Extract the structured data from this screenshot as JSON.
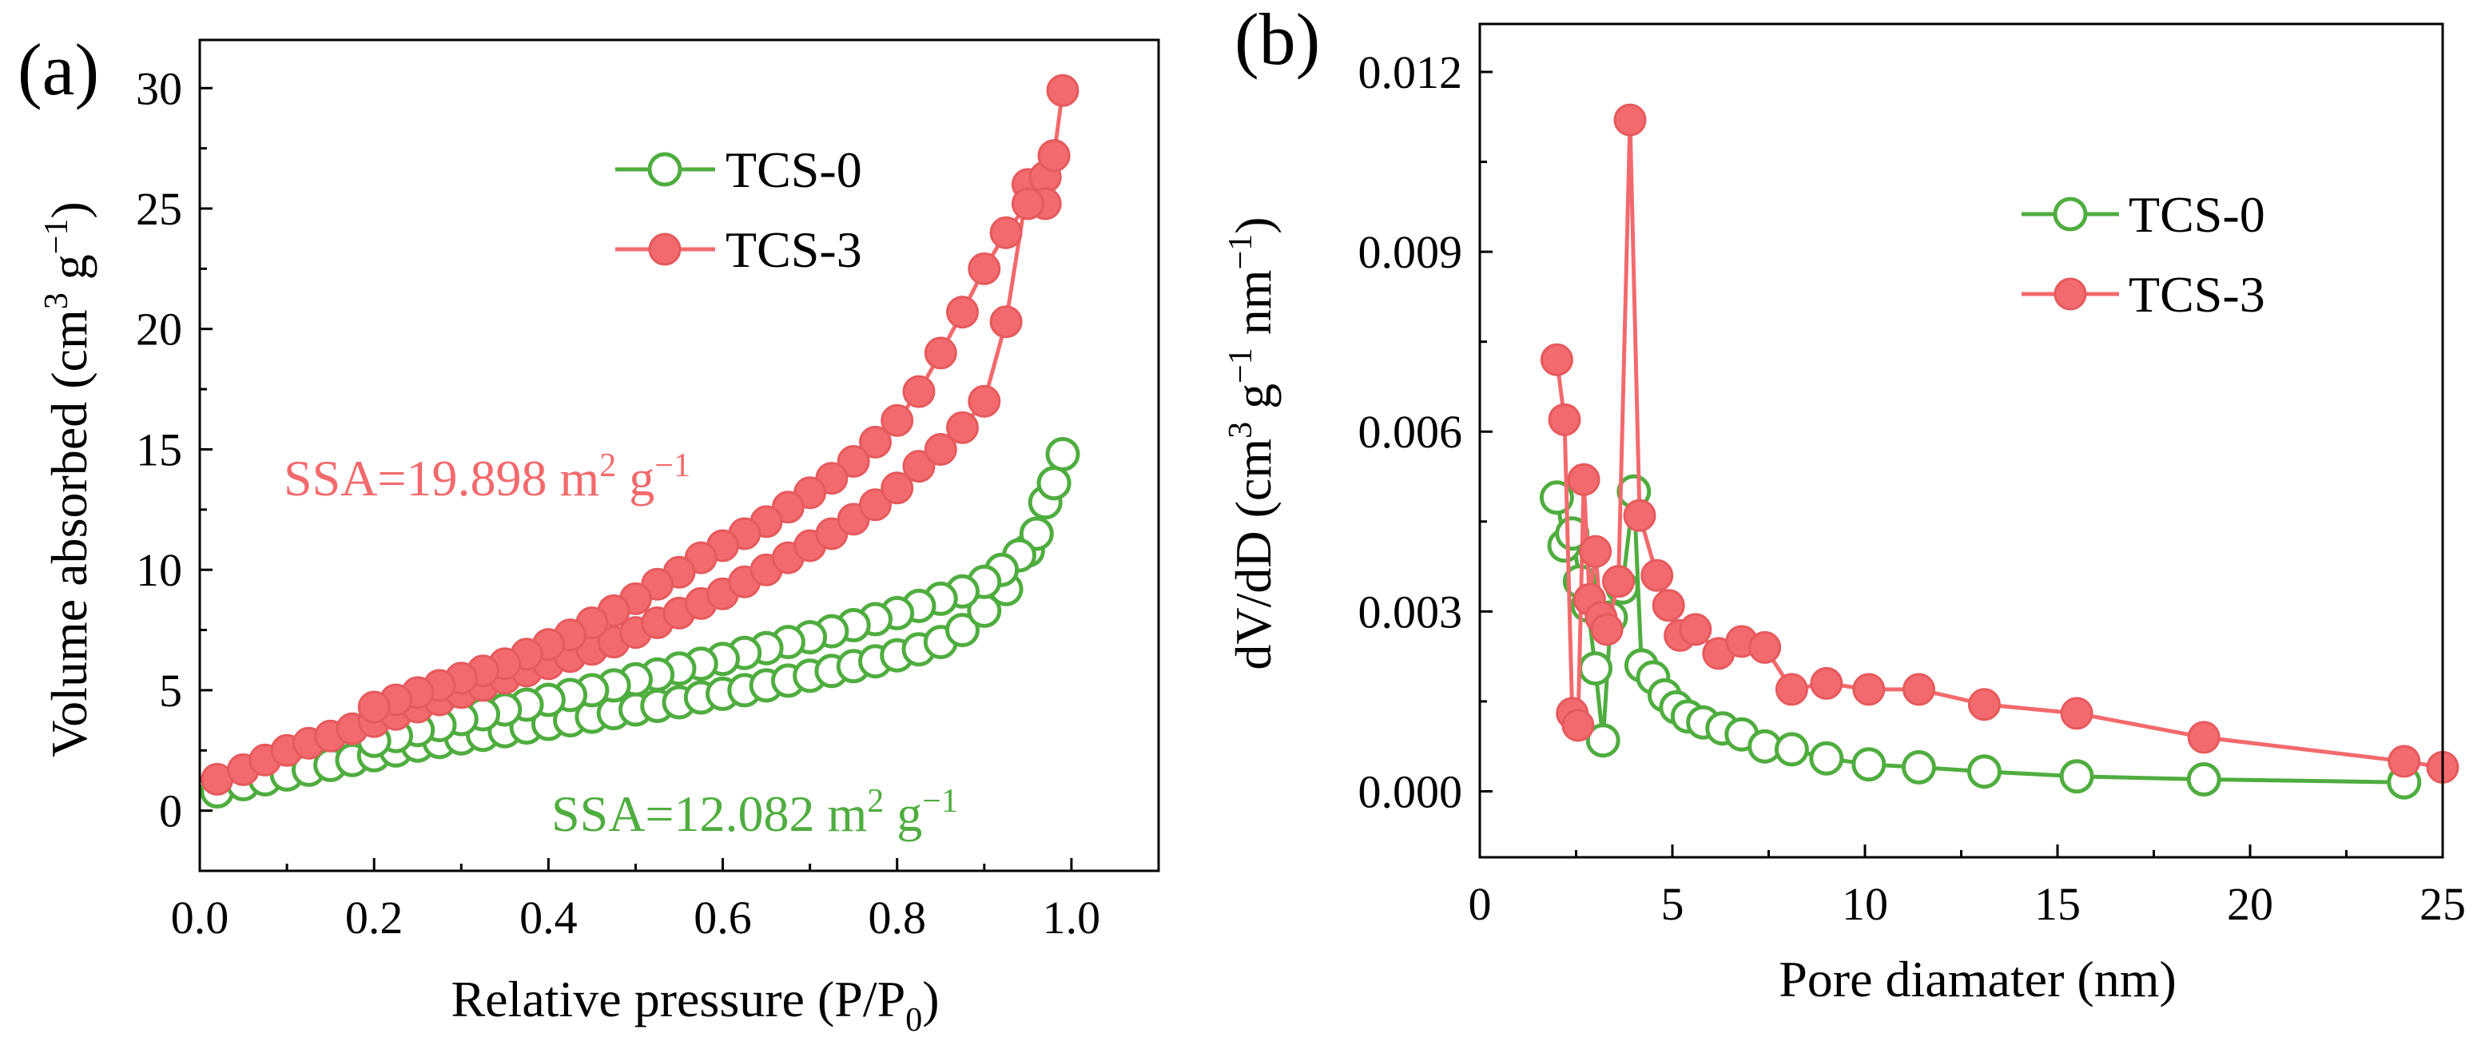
{
  "colors": {
    "tcs0": "#4fad3f",
    "tcs3": "#f26a6d",
    "axis": "#000000"
  },
  "chart_data": [
    {
      "panel_label": "(a)",
      "type": "scatter",
      "title": "",
      "xlabel": "Relative pressure (P/P",
      "xlabel_sub": "0",
      "xlabel_end": ")",
      "ylabel": "Volume absorbed (cm",
      "ylabel_sup1": "3",
      "ylabel_mid": " g",
      "ylabel_sup2": "−1",
      "ylabel_end": ")",
      "xlim": [
        0,
        1.1
      ],
      "ylim": [
        -2.5,
        32
      ],
      "xticks": [
        0.0,
        0.2,
        0.4,
        0.6,
        0.8,
        1.0
      ],
      "xtick_labels": [
        "0.0",
        "0.2",
        "0.4",
        "0.6",
        "0.8",
        "1.0"
      ],
      "yticks": [
        0,
        5,
        10,
        15,
        20,
        25,
        30
      ],
      "ytick_labels": [
        "0",
        "5",
        "10",
        "15",
        "20",
        "25",
        "30"
      ],
      "legend": {
        "position": "top-right",
        "entries": [
          "TCS-0",
          "TCS-3"
        ]
      },
      "annotations": [
        {
          "series": "TCS-3",
          "base": "SSA=19.898 m",
          "sup1": "2",
          "mid": " g",
          "sup2": "−1"
        },
        {
          "series": "TCS-0",
          "base": "SSA=12.082 m",
          "sup1": "2",
          "mid": " g",
          "sup2": "−1"
        }
      ],
      "series": [
        {
          "name": "TCS-0",
          "marker": "open-circle",
          "color_key": "tcs0",
          "x": [
            0.02,
            0.05,
            0.075,
            0.1,
            0.125,
            0.15,
            0.175,
            0.2,
            0.225,
            0.25,
            0.275,
            0.3,
            0.325,
            0.35,
            0.375,
            0.4,
            0.425,
            0.45,
            0.475,
            0.5,
            0.525,
            0.55,
            0.575,
            0.6,
            0.625,
            0.65,
            0.675,
            0.7,
            0.725,
            0.75,
            0.775,
            0.8,
            0.825,
            0.85,
            0.875,
            0.9,
            0.925,
            0.95,
            0.97,
            0.98,
            0.99,
            0.98,
            0.96,
            0.94,
            0.92,
            0.9,
            0.875,
            0.85,
            0.825,
            0.8,
            0.775,
            0.75,
            0.725,
            0.7,
            0.675,
            0.65,
            0.625,
            0.6,
            0.575,
            0.55,
            0.525,
            0.5,
            0.475,
            0.45,
            0.425,
            0.4,
            0.375,
            0.35,
            0.325,
            0.3,
            0.275,
            0.25,
            0.225,
            0.2
          ],
          "y": [
            0.8,
            1.1,
            1.3,
            1.5,
            1.7,
            1.9,
            2.1,
            2.3,
            2.5,
            2.7,
            2.85,
            3.0,
            3.15,
            3.3,
            3.45,
            3.6,
            3.75,
            3.9,
            4.05,
            4.2,
            4.35,
            4.5,
            4.7,
            4.85,
            5.0,
            5.2,
            5.4,
            5.6,
            5.8,
            6.0,
            6.2,
            6.45,
            6.7,
            7.0,
            7.5,
            8.3,
            9.2,
            10.8,
            12.8,
            13.6,
            14.8,
            13.6,
            11.5,
            10.6,
            10.0,
            9.5,
            9.1,
            8.8,
            8.5,
            8.2,
            7.95,
            7.7,
            7.45,
            7.2,
            7.0,
            6.75,
            6.55,
            6.3,
            6.1,
            5.9,
            5.65,
            5.45,
            5.2,
            5.0,
            4.8,
            4.6,
            4.4,
            4.2,
            4.0,
            3.8,
            3.55,
            3.35,
            3.1,
            2.9
          ]
        },
        {
          "name": "TCS-3",
          "marker": "filled-circle",
          "color_key": "tcs3",
          "x": [
            0.02,
            0.05,
            0.075,
            0.1,
            0.125,
            0.15,
            0.175,
            0.2,
            0.225,
            0.25,
            0.275,
            0.3,
            0.325,
            0.35,
            0.375,
            0.4,
            0.425,
            0.45,
            0.475,
            0.5,
            0.525,
            0.55,
            0.575,
            0.6,
            0.625,
            0.65,
            0.675,
            0.7,
            0.725,
            0.75,
            0.775,
            0.8,
            0.825,
            0.85,
            0.875,
            0.9,
            0.925,
            0.95,
            0.97,
            0.98,
            0.99,
            0.98,
            0.97,
            0.95,
            0.925,
            0.9,
            0.875,
            0.85,
            0.825,
            0.8,
            0.775,
            0.75,
            0.725,
            0.7,
            0.675,
            0.65,
            0.625,
            0.6,
            0.575,
            0.55,
            0.525,
            0.5,
            0.475,
            0.45,
            0.425,
            0.4,
            0.375,
            0.35,
            0.325,
            0.3,
            0.275,
            0.25,
            0.225,
            0.2
          ],
          "y": [
            1.3,
            1.7,
            2.1,
            2.5,
            2.8,
            3.1,
            3.4,
            3.7,
            4.0,
            4.3,
            4.6,
            4.9,
            5.2,
            5.5,
            5.8,
            6.1,
            6.4,
            6.7,
            7.0,
            7.4,
            7.8,
            8.2,
            8.6,
            9.0,
            9.5,
            10.0,
            10.5,
            11.0,
            11.5,
            12.1,
            12.7,
            13.4,
            14.3,
            15.0,
            15.9,
            17.0,
            20.3,
            26.0,
            26.3,
            27.2,
            29.9,
            27.2,
            25.2,
            25.2,
            24.0,
            22.5,
            20.7,
            19.0,
            17.4,
            16.2,
            15.3,
            14.5,
            13.8,
            13.2,
            12.6,
            12.0,
            11.5,
            11.0,
            10.5,
            9.9,
            9.4,
            8.8,
            8.3,
            7.8,
            7.3,
            6.9,
            6.5,
            6.1,
            5.8,
            5.5,
            5.2,
            4.9,
            4.6,
            4.3
          ]
        }
      ]
    },
    {
      "panel_label": "(b)",
      "type": "line",
      "title": "",
      "xlabel": "Pore diamater (nm)",
      "ylabel": "dV/dD (cm",
      "ylabel_sup1": "3",
      "ylabel_mid1": " g",
      "ylabel_sup2": "−1",
      "ylabel_mid2": " nm",
      "ylabel_sup3": "−1",
      "ylabel_end": ")",
      "xlim": [
        0,
        25
      ],
      "ylim": [
        -0.0011,
        0.0128
      ],
      "xticks": [
        0,
        5,
        10,
        15,
        20,
        25
      ],
      "xtick_labels": [
        "0",
        "5",
        "10",
        "15",
        "20",
        "25"
      ],
      "yticks": [
        0,
        0.003,
        0.006,
        0.009,
        0.012
      ],
      "ytick_labels": [
        "0.000",
        "0.003",
        "0.006",
        "0.009",
        "0.012"
      ],
      "legend": {
        "position": "top-right",
        "entries": [
          "TCS-0",
          "TCS-3"
        ]
      },
      "series": [
        {
          "name": "TCS-0",
          "marker": "open-circle",
          "color_key": "tcs0",
          "x": [
            2.0,
            2.2,
            2.4,
            2.6,
            2.8,
            3.0,
            3.2,
            3.4,
            3.7,
            4.0,
            4.2,
            4.5,
            4.8,
            5.1,
            5.4,
            5.8,
            6.3,
            6.8,
            7.4,
            8.1,
            9.0,
            10.1,
            11.4,
            13.1,
            15.5,
            18.8,
            24.0
          ],
          "y": [
            0.0049,
            0.0041,
            0.0043,
            0.0035,
            0.0031,
            0.00205,
            0.00085,
            0.0029,
            0.0034,
            0.005,
            0.0021,
            0.0019,
            0.0016,
            0.0014,
            0.00125,
            0.00115,
            0.00105,
            0.00095,
            0.00075,
            0.0007,
            0.00055,
            0.00045,
            0.0004,
            0.00033,
            0.00025,
            0.0002,
            0.00015
          ]
        },
        {
          "name": "TCS-3",
          "marker": "filled-circle",
          "color_key": "tcs3",
          "x": [
            2.0,
            2.2,
            2.4,
            2.55,
            2.7,
            2.85,
            3.0,
            3.15,
            3.3,
            3.6,
            3.9,
            4.15,
            4.6,
            4.9,
            5.2,
            5.6,
            6.2,
            6.8,
            7.4,
            8.1,
            9.0,
            10.1,
            11.4,
            13.1,
            15.5,
            18.8,
            24.0,
            25.0
          ],
          "y": [
            0.0072,
            0.0062,
            0.0013,
            0.0011,
            0.0052,
            0.0032,
            0.004,
            0.0029,
            0.0027,
            0.0035,
            0.0112,
            0.0046,
            0.0036,
            0.0031,
            0.0026,
            0.0027,
            0.0023,
            0.0025,
            0.0024,
            0.0017,
            0.0018,
            0.0017,
            0.0017,
            0.00145,
            0.0013,
            0.0009,
            0.0005,
            0.0004
          ]
        }
      ]
    }
  ]
}
